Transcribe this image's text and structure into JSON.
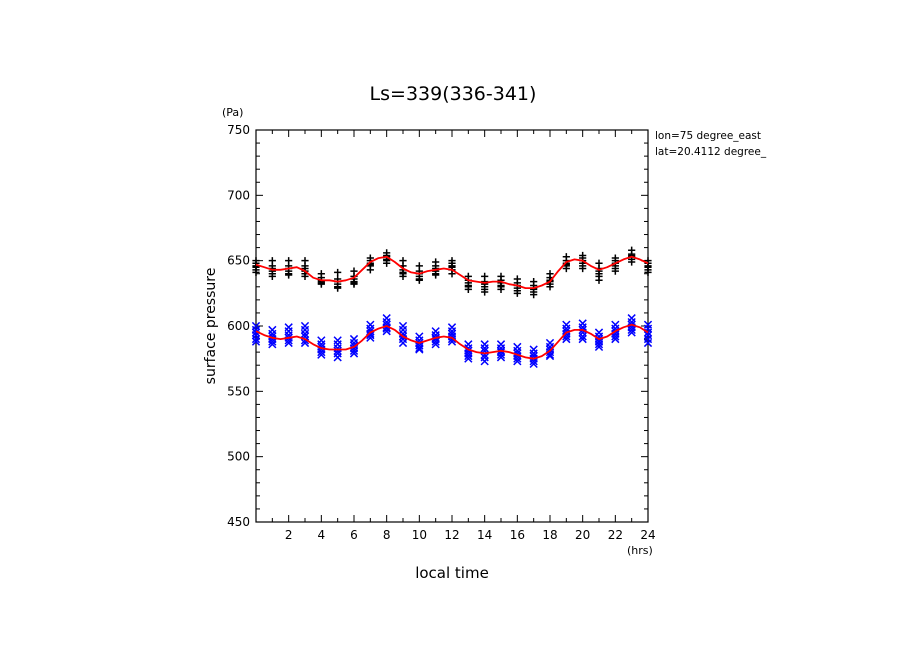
{
  "chart_data": {
    "type": "scatter",
    "title": "Ls=339(336-341)",
    "xlabel": "local time",
    "ylabel": "surface pressure",
    "x_unit": "(hrs)",
    "y_unit": "(Pa)",
    "xlim": [
      0,
      24
    ],
    "ylim": [
      450,
      750
    ],
    "xticks": [
      2,
      4,
      6,
      8,
      10,
      12,
      14,
      16,
      18,
      20,
      22,
      24
    ],
    "yticks": [
      450,
      500,
      550,
      600,
      650,
      700,
      750
    ],
    "annotations": [
      "lon=75 degree_east",
      "lat=20.4112 degree_"
    ],
    "grid": false,
    "series": [
      {
        "marker": "+",
        "color": "#000000",
        "x": [
          0,
          0,
          0,
          0,
          0,
          0,
          1,
          1,
          1,
          1,
          1,
          1,
          2,
          2,
          2,
          2,
          2,
          2,
          3,
          3,
          3,
          3,
          3,
          3,
          4,
          4,
          4,
          4,
          4,
          4,
          5,
          5,
          5,
          5,
          5,
          5,
          6,
          6,
          6,
          6,
          6,
          6,
          7,
          7,
          7,
          7,
          7,
          7,
          8,
          8,
          8,
          8,
          8,
          8,
          9,
          9,
          9,
          9,
          9,
          9,
          10,
          10,
          10,
          10,
          10,
          10,
          11,
          11,
          11,
          11,
          11,
          11,
          12,
          12,
          12,
          12,
          12,
          12,
          13,
          13,
          13,
          13,
          13,
          13,
          14,
          14,
          14,
          14,
          14,
          14,
          15,
          15,
          15,
          15,
          15,
          15,
          16,
          16,
          16,
          16,
          16,
          16,
          17,
          17,
          17,
          17,
          17,
          17,
          18,
          18,
          18,
          18,
          18,
          18,
          19,
          19,
          19,
          19,
          19,
          19,
          20,
          20,
          20,
          20,
          20,
          20,
          21,
          21,
          21,
          21,
          21,
          21,
          22,
          22,
          22,
          22,
          22,
          22,
          23,
          23,
          23,
          23,
          23,
          23,
          24,
          24,
          24,
          24,
          24,
          24
        ],
        "y": [
          650,
          648,
          646,
          645,
          643,
          641,
          650,
          646,
          644,
          642,
          640,
          638,
          650,
          646,
          644,
          642,
          640,
          639,
          650,
          646,
          644,
          642,
          640,
          638,
          640,
          637,
          635,
          634,
          633,
          632,
          641,
          636,
          634,
          632,
          630,
          629,
          642,
          638,
          636,
          634,
          633,
          632,
          652,
          650,
          648,
          647,
          646,
          643,
          656,
          654,
          653,
          651,
          650,
          648,
          650,
          646,
          643,
          641,
          640,
          638,
          646,
          642,
          640,
          638,
          636,
          635,
          649,
          646,
          644,
          642,
          640,
          639,
          650,
          648,
          646,
          645,
          643,
          640,
          638,
          635,
          633,
          631,
          630,
          628,
          638,
          634,
          632,
          630,
          628,
          626,
          638,
          635,
          633,
          631,
          630,
          628,
          636,
          633,
          631,
          629,
          627,
          625,
          634,
          631,
          629,
          628,
          626,
          624,
          640,
          637,
          635,
          634,
          632,
          630,
          653,
          650,
          648,
          647,
          646,
          644,
          654,
          652,
          650,
          648,
          646,
          644,
          648,
          644,
          642,
          640,
          638,
          635,
          652,
          650,
          648,
          646,
          644,
          642,
          658,
          655,
          654,
          653,
          651,
          649,
          650,
          648,
          646,
          645,
          643,
          641
        ]
      },
      {
        "marker": "x",
        "color": "#0000ff",
        "x": [
          0,
          0,
          0,
          0,
          0,
          0,
          1,
          1,
          1,
          1,
          1,
          1,
          2,
          2,
          2,
          2,
          2,
          2,
          3,
          3,
          3,
          3,
          3,
          3,
          4,
          4,
          4,
          4,
          4,
          4,
          5,
          5,
          5,
          5,
          5,
          5,
          6,
          6,
          6,
          6,
          6,
          6,
          7,
          7,
          7,
          7,
          7,
          7,
          8,
          8,
          8,
          8,
          8,
          8,
          9,
          9,
          9,
          9,
          9,
          9,
          10,
          10,
          10,
          10,
          10,
          10,
          11,
          11,
          11,
          11,
          11,
          11,
          12,
          12,
          12,
          12,
          12,
          12,
          13,
          13,
          13,
          13,
          13,
          13,
          14,
          14,
          14,
          14,
          14,
          14,
          15,
          15,
          15,
          15,
          15,
          15,
          16,
          16,
          16,
          16,
          16,
          16,
          17,
          17,
          17,
          17,
          17,
          17,
          18,
          18,
          18,
          18,
          18,
          18,
          19,
          19,
          19,
          19,
          19,
          19,
          20,
          20,
          20,
          20,
          20,
          20,
          21,
          21,
          21,
          21,
          21,
          21,
          22,
          22,
          22,
          22,
          22,
          22,
          23,
          23,
          23,
          23,
          23,
          23,
          24,
          24,
          24,
          24,
          24,
          24
        ],
        "y": [
          600,
          597,
          595,
          593,
          590,
          588,
          597,
          594,
          592,
          590,
          588,
          586,
          599,
          596,
          593,
          591,
          589,
          587,
          600,
          597,
          594,
          592,
          589,
          587,
          589,
          586,
          584,
          582,
          580,
          578,
          589,
          586,
          583,
          581,
          579,
          576,
          590,
          587,
          585,
          583,
          581,
          579,
          601,
          598,
          596,
          594,
          593,
          591,
          606,
          603,
          601,
          599,
          598,
          596,
          600,
          597,
          594,
          592,
          590,
          587,
          592,
          589,
          587,
          585,
          583,
          582,
          596,
          593,
          591,
          590,
          588,
          586,
          599,
          596,
          594,
          592,
          590,
          588,
          586,
          583,
          581,
          579,
          577,
          575,
          586,
          583,
          581,
          578,
          576,
          573,
          586,
          583,
          581,
          580,
          578,
          576,
          584,
          581,
          579,
          577,
          575,
          573,
          582,
          579,
          577,
          575,
          573,
          571,
          587,
          584,
          582,
          580,
          578,
          577,
          601,
          598,
          596,
          594,
          592,
          590,
          602,
          599,
          597,
          595,
          592,
          590,
          595,
          592,
          590,
          588,
          586,
          584,
          601,
          598,
          596,
          594,
          592,
          590,
          606,
          603,
          601,
          599,
          597,
          595,
          601,
          598,
          595,
          593,
          590,
          587
        ]
      },
      {
        "marker": "line",
        "color": "#ff0000",
        "x": [
          0,
          0.5,
          1,
          1.5,
          2,
          2.5,
          3,
          3.5,
          4,
          4.5,
          5,
          5.5,
          6,
          6.5,
          7,
          7.5,
          8,
          8.5,
          9,
          9.5,
          10,
          10.5,
          11,
          11.5,
          12,
          12.5,
          13,
          13.5,
          14,
          14.5,
          15,
          15.5,
          16,
          16.5,
          17,
          17.5,
          18,
          18.5,
          19,
          19.5,
          20,
          20.5,
          21,
          21.5,
          22,
          22.5,
          23,
          23.5,
          24
        ],
        "y": [
          647,
          645,
          643,
          643,
          644,
          645,
          642,
          637,
          635,
          635,
          634,
          635,
          637,
          643,
          649,
          652,
          653,
          649,
          644,
          641,
          640,
          642,
          643,
          644,
          643,
          639,
          635,
          634,
          633,
          634,
          634,
          632,
          631,
          629,
          629,
          631,
          634,
          642,
          649,
          651,
          650,
          646,
          643,
          645,
          648,
          651,
          653,
          651,
          648
        ]
      },
      {
        "marker": "line",
        "color": "#ff0000",
        "x": [
          0,
          0.5,
          1,
          1.5,
          2,
          2.5,
          3,
          3.5,
          4,
          4.5,
          5,
          5.5,
          6,
          6.5,
          7,
          7.5,
          8,
          8.5,
          9,
          9.5,
          10,
          10.5,
          11,
          11.5,
          12,
          12.5,
          13,
          13.5,
          14,
          14.5,
          15,
          15.5,
          16,
          16.5,
          17,
          17.5,
          18,
          18.5,
          19,
          19.5,
          20,
          20.5,
          21,
          21.5,
          22,
          22.5,
          23,
          23.5,
          24
        ],
        "y": [
          596,
          593,
          591,
          590,
          591,
          592,
          590,
          586,
          583,
          582,
          582,
          582,
          584,
          589,
          595,
          598,
          600,
          597,
          592,
          589,
          587,
          589,
          591,
          592,
          591,
          586,
          582,
          580,
          579,
          580,
          581,
          580,
          578,
          576,
          575,
          577,
          581,
          588,
          595,
          597,
          597,
          594,
          590,
          592,
          596,
          599,
          601,
          599,
          595
        ]
      }
    ]
  }
}
